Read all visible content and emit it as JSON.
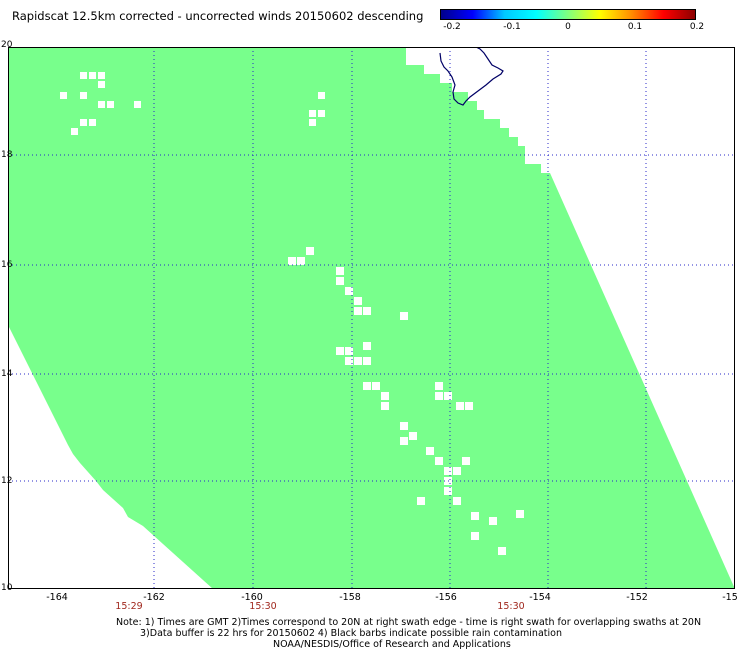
{
  "header": {
    "title": "Rapidscat 12.5km corrected - uncorrected winds 20150602 descending"
  },
  "colorbar": {
    "labels": [
      "-0.2",
      "-0.1",
      "0",
      "0.1",
      "0.2"
    ],
    "gradient": [
      "#00008b",
      "#0000ff",
      "#00c8ff",
      "#00ffff",
      "#7fff7f",
      "#ffff00",
      "#ff8c00",
      "#ff0000",
      "#8b0000"
    ]
  },
  "map": {
    "swath_color": "#78ff8c",
    "grid_color": "#2828c8",
    "coast_color": "#000066",
    "lat_labels": [
      "20",
      "18",
      "16",
      "14",
      "12",
      "10"
    ],
    "lon_labels": [
      "-164",
      "-162",
      "-160",
      "-158",
      "-156",
      "-154",
      "-152",
      "-15"
    ],
    "time_labels": [
      "15:29",
      "15:30",
      "15:30"
    ]
  },
  "footer": {
    "note_line1": "Note: 1) Times are GMT 2)Times correspond to 20N at right swath edge - time is right swath for overlapping swaths at 20N",
    "note_line2": "3)Data buffer is 22 hrs for 20150602 4) Black barbs indicate possible rain contamination",
    "note_line3": "NOAA/NESDIS/Office of Research and Applications"
  }
}
